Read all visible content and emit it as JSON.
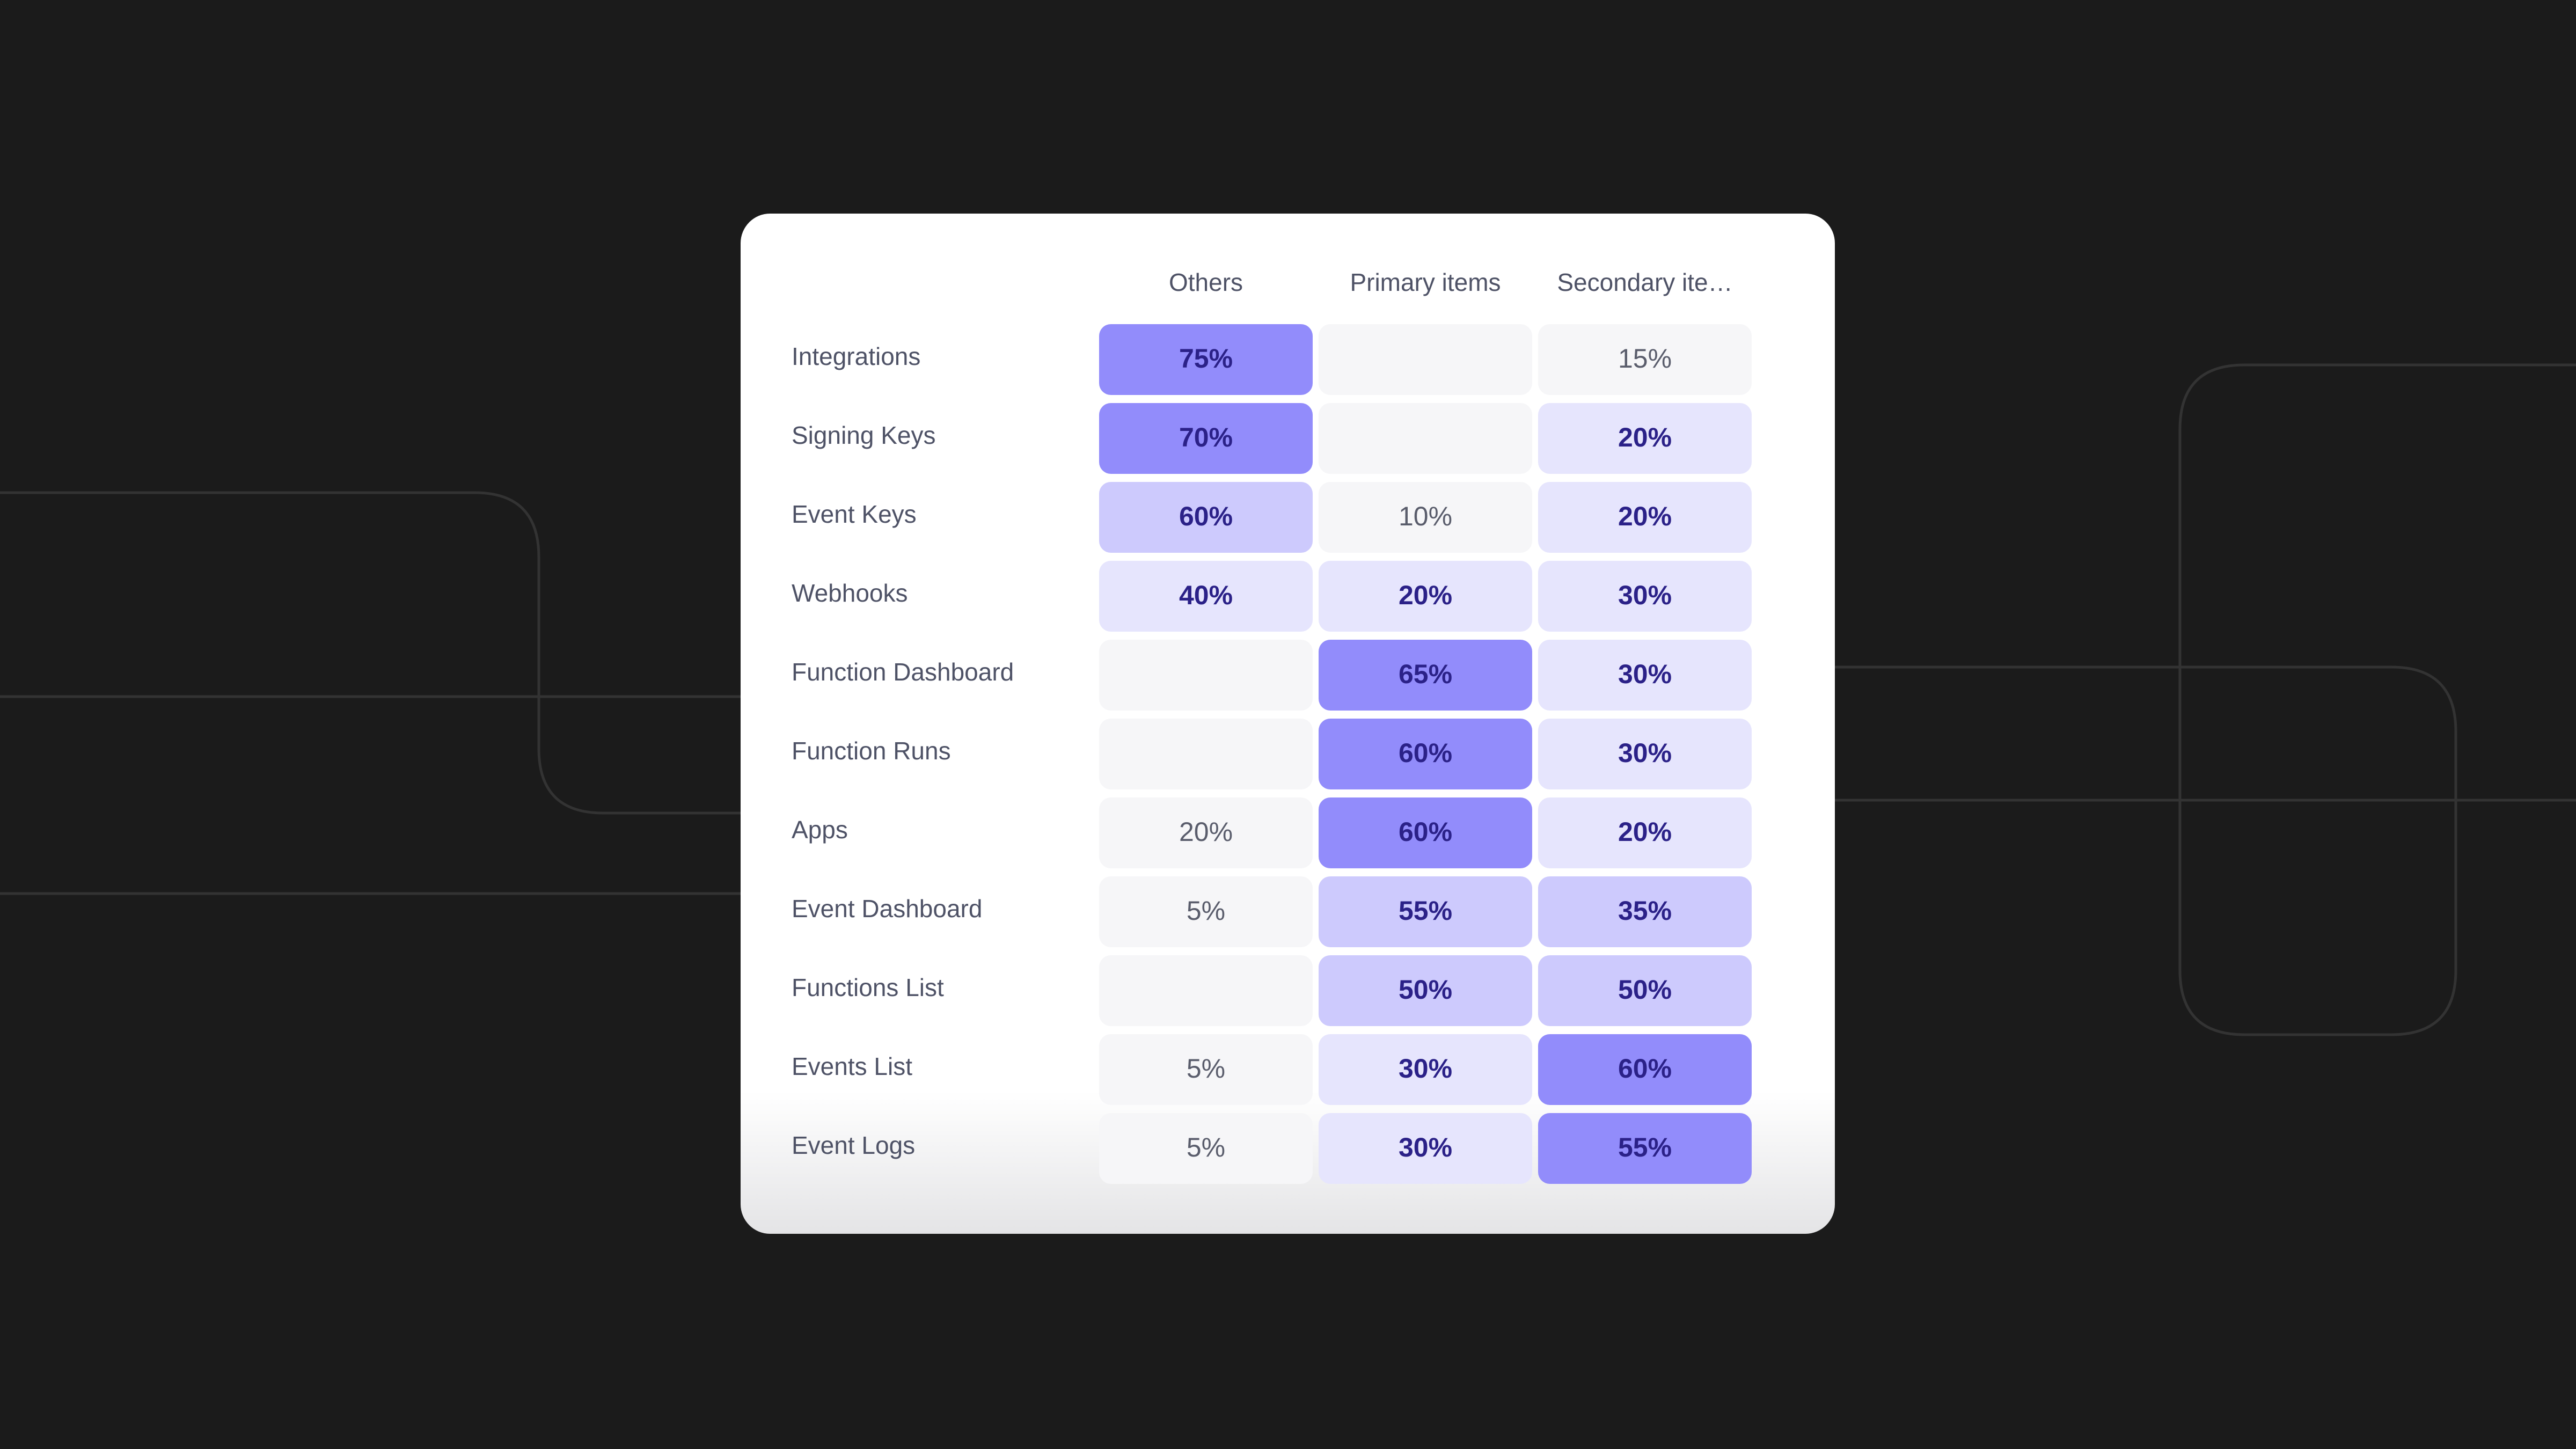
{
  "chart_data": {
    "type": "heatmap",
    "categories": [
      "Integrations",
      "Signing Keys",
      "Event Keys",
      "Webhooks",
      "Function Dashboard",
      "Function Runs",
      "Apps",
      "Event Dashboard",
      "Functions List",
      "Events List",
      "Event Logs"
    ],
    "empty_color": "#f6f6f8",
    "series": [
      {
        "name": "Others",
        "values": [
          75,
          70,
          60,
          40,
          null,
          null,
          20,
          5,
          null,
          5,
          5
        ],
        "value_labels": [
          "75%",
          "70%",
          "60%",
          "40%",
          null,
          null,
          "20%",
          "5%",
          null,
          "5%",
          "5%"
        ],
        "colors": [
          "#928cfb",
          "#928cfb",
          "#cdcafd",
          "#e6e5fd",
          "#f6f6f8",
          "#f6f6f8",
          "#f6f6f8",
          "#f6f6f8",
          "#f6f6f8",
          "#f6f6f8",
          "#f6f6f8"
        ]
      },
      {
        "name": "Primary items",
        "values": [
          null,
          null,
          10,
          20,
          65,
          60,
          60,
          55,
          50,
          30,
          30
        ],
        "value_labels": [
          null,
          null,
          "10%",
          "20%",
          "65%",
          "60%",
          "60%",
          "55%",
          "50%",
          "30%",
          "30%"
        ],
        "colors": [
          "#f6f6f8",
          "#f6f6f8",
          "#f6f6f8",
          "#e6e5fd",
          "#928cfb",
          "#928cfb",
          "#928cfb",
          "#cdcafd",
          "#cdcafd",
          "#e6e5fd",
          "#e6e5fd"
        ]
      },
      {
        "name": "Secondary ite…",
        "values": [
          15,
          20,
          20,
          30,
          30,
          30,
          20,
          35,
          50,
          60,
          55
        ],
        "value_labels": [
          "15%",
          "20%",
          "20%",
          "30%",
          "30%",
          "30%",
          "20%",
          "35%",
          "50%",
          "60%",
          "55%"
        ],
        "colors": [
          "#f6f6f8",
          "#e6e5fd",
          "#e6e5fd",
          "#e6e5fd",
          "#e6e5fd",
          "#e6e5fd",
          "#e6e5fd",
          "#cdcafd",
          "#cdcafd",
          "#928cfb",
          "#928cfb"
        ]
      }
    ]
  }
}
